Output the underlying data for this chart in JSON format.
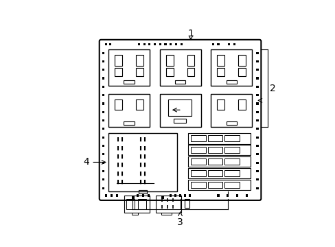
{
  "bg_color": "#ffffff",
  "box_color": "#000000",
  "label_1": "1",
  "label_2": "2",
  "label_3": "3",
  "label_4": "4",
  "label_color": "#000000",
  "label_fontsize": 10
}
